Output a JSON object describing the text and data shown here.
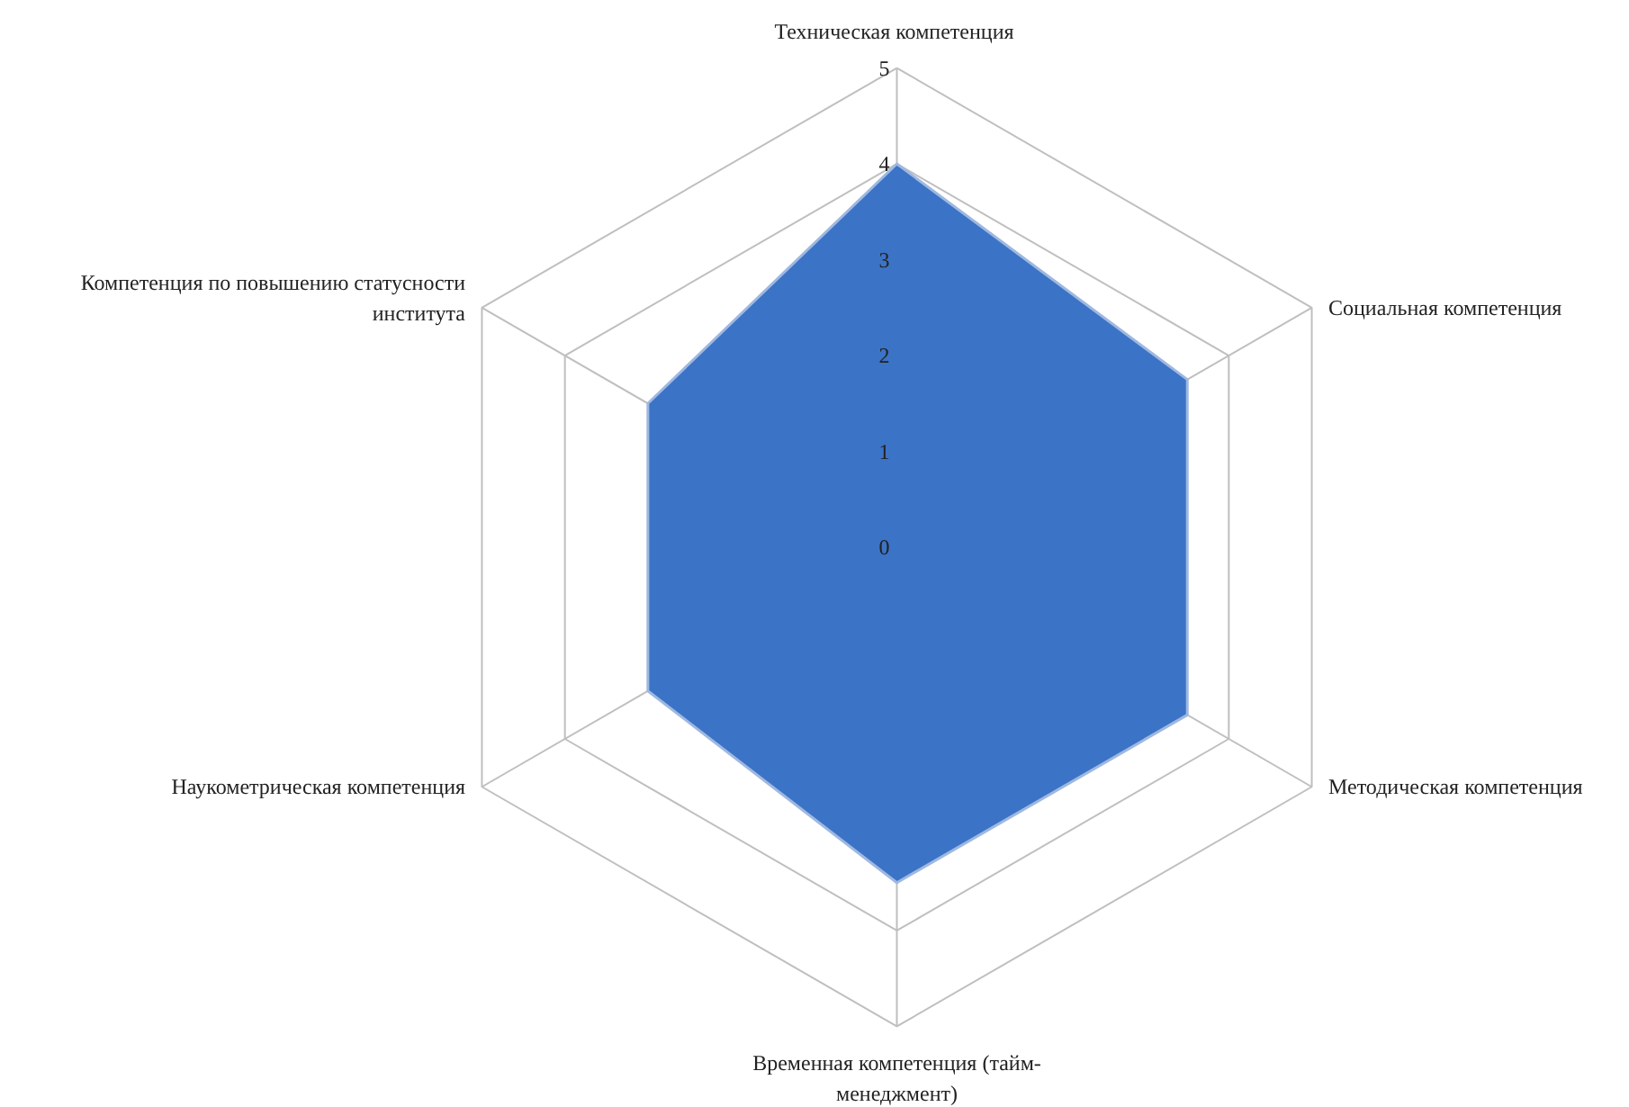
{
  "chart_data": {
    "type": "radar",
    "categories": [
      "Техническая  компетенция",
      "Социальная компетенция",
      "Методическая компетенция",
      "Временная компетенция (тайм-менеджмент)",
      "Наукометрическая компетенция",
      "Компетенция по повышению статусности института"
    ],
    "series": [
      {
        "color": "#3b73c6",
        "values": [
          4,
          3.5,
          3.5,
          3.5,
          3,
          3
        ]
      }
    ],
    "ylim": [
      0,
      5
    ],
    "yticks": [
      0,
      1,
      2,
      3,
      4,
      5
    ],
    "grid": true
  }
}
